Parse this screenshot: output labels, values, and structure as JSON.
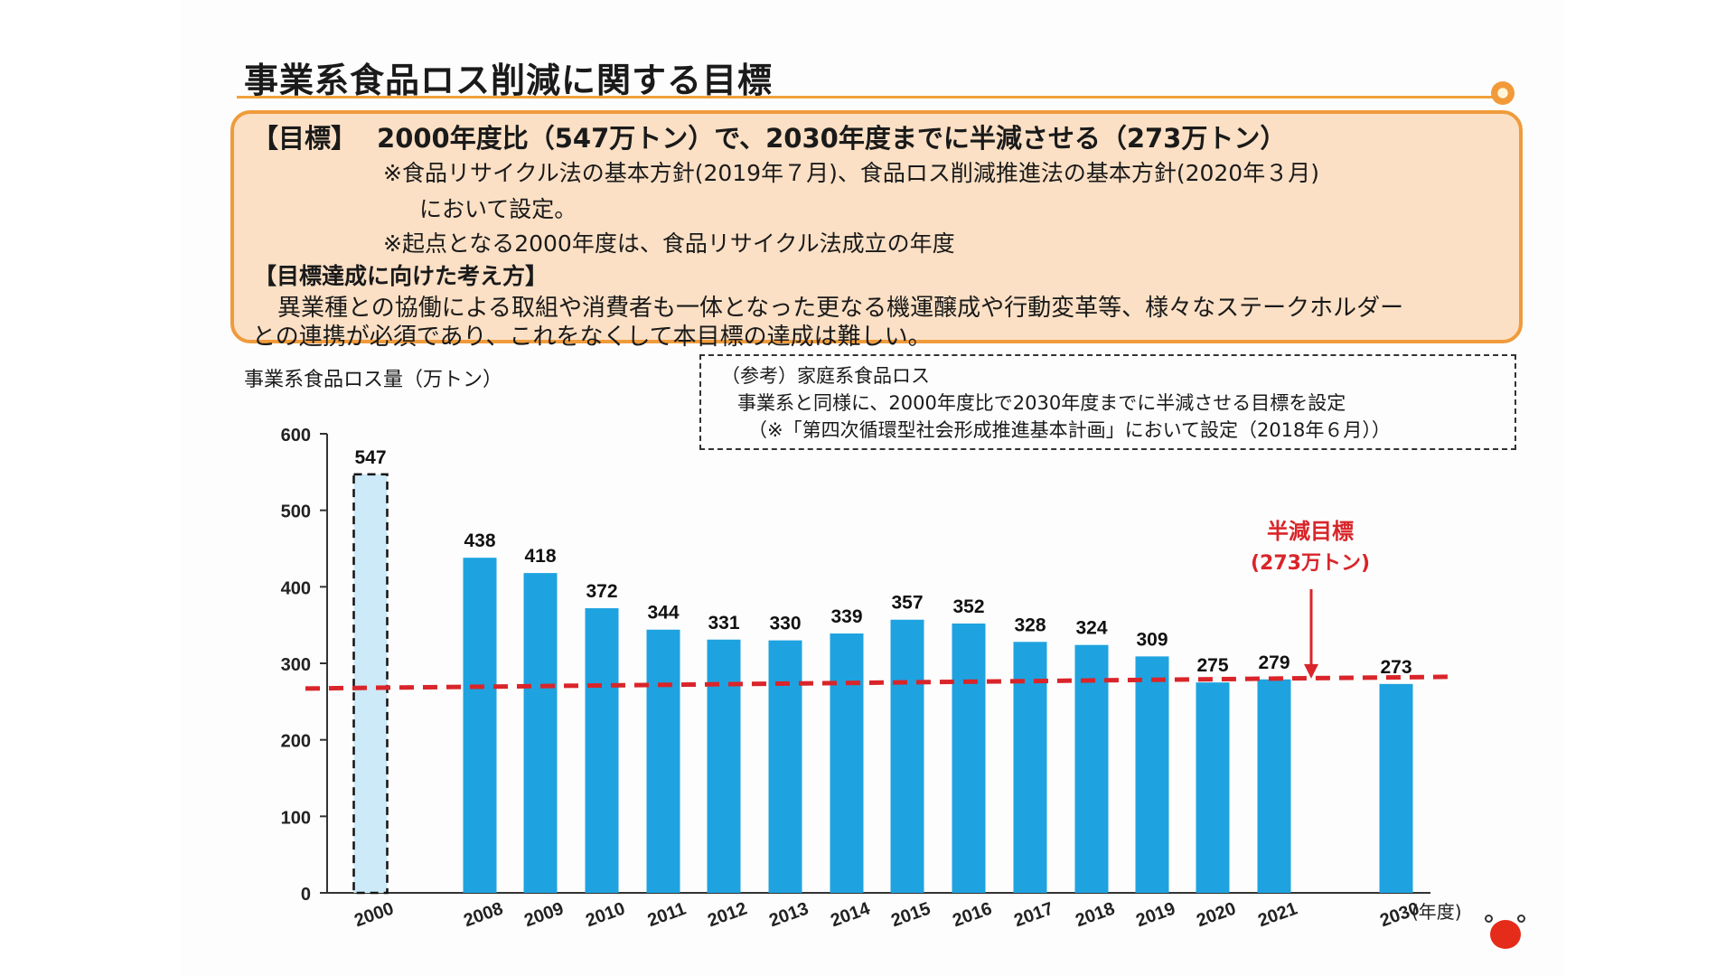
{
  "slide_title": "事業系食品ロス削減に関する目標",
  "goal_box": {
    "label": "【目標】",
    "headline": "2000年度比（547万トン）で、2030年度までに半減させる（273万トン）",
    "note_1": "※食品リサイクル法の基本方針(2019年７月)、食品ロス削減推進法の基本方針(2020年３月)",
    "note_2": "において設定。",
    "note_3": "※起点となる2000年度は、食品リサイクル法成立の年度",
    "approach_heading": "【目標達成に向けた考え方】",
    "approach_1": "異業種との協働による取組や消費者も一体となった更なる機運醸成や行動変革等、様々なステークホルダー",
    "approach_2": "との連携が必須であり、これをなくして本目標の達成は難しい。"
  },
  "reference_box": {
    "line_1": "（参考）家庭系食品ロス",
    "line_2": "事業系と同様に、2000年度比で2030年度までに半減させる目標を設定",
    "line_3": "（※「第四次循環型社会形成推進基本計画」において設定（2018年６月））"
  },
  "chart_data": {
    "type": "bar",
    "ylabel": "事業系食品ロス量（万トン）",
    "xlabel": "(年度)",
    "ylim": [
      0,
      600
    ],
    "yticks": [
      0,
      100,
      200,
      300,
      400,
      500,
      600
    ],
    "categories": [
      "2000",
      "2008",
      "2009",
      "2010",
      "2011",
      "2012",
      "2013",
      "2014",
      "2015",
      "2016",
      "2017",
      "2018",
      "2019",
      "2020",
      "2021",
      "2030"
    ],
    "values": [
      547,
      438,
      418,
      372,
      344,
      331,
      330,
      339,
      357,
      352,
      328,
      324,
      309,
      275,
      279,
      273
    ],
    "baseline_category": "2000",
    "target": {
      "value": 273,
      "label_line1": "半減目標",
      "label_line2": "(273万トン)"
    },
    "colors": {
      "bar": "#1ea3e0",
      "baseline_bar": "#cdeaf8",
      "target_line": "#d9252a"
    }
  }
}
